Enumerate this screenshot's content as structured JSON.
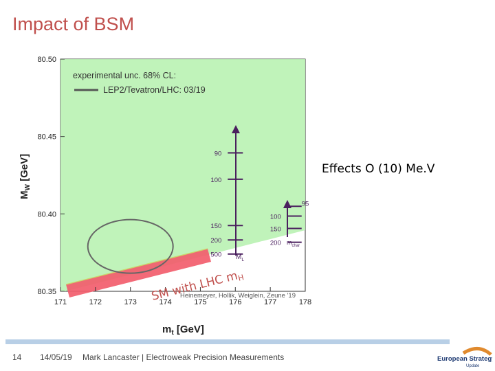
{
  "slide": {
    "title": "Impact of BSM",
    "side_note": "Effects O (10) Me.V"
  },
  "footer": {
    "page": "14",
    "date": "14/05/19",
    "author": "Mark Lancaster | Electroweak Precision Measurements",
    "logo_text_1": "European Strategy",
    "logo_text_2": "Update"
  },
  "chart_data": {
    "type": "scatter",
    "title": "",
    "xlabel": "m_t [GeV]",
    "ylabel": "M_W [GeV]",
    "xlim": [
      171,
      178
    ],
    "ylim": [
      80.35,
      80.5
    ],
    "x_ticks": [
      "171",
      "172",
      "173",
      "174",
      "175",
      "176",
      "177",
      "178"
    ],
    "y_ticks": [
      "80.35",
      "80.40",
      "80.45",
      "80.50"
    ],
    "legend": {
      "heading": "experimental unc. 68% CL:",
      "entry": "LEP2/Tevatron/LHC: 03/19"
    },
    "ellipse": {
      "center_mt": 173.0,
      "center_mw": 80.379,
      "label": "LEP2/Tevatron/LHC: 03/19"
    },
    "ml_scan": {
      "label": "M_L",
      "mt": 176.0,
      "points": [
        {
          "label": "90",
          "mw": 80.4394
        },
        {
          "label": "100",
          "mw": 80.4224
        },
        {
          "label": "150",
          "mw": 80.3925
        },
        {
          "label": "200",
          "mw": 80.3832
        },
        {
          "label": "500",
          "mw": 80.3741
        }
      ]
    },
    "mchar_scan": {
      "label": "m_char",
      "mt": 177.7,
      "points": [
        {
          "label": "95",
          "mw": 80.4049
        },
        {
          "label": "100",
          "mw": 80.3986
        },
        {
          "label": "150",
          "mw": 80.3906
        },
        {
          "label": "200",
          "mw": 80.3817
        }
      ]
    },
    "sm_band_label": "SM with LHC m_H",
    "credit": "Heinemeyer, Hollik, Weiglein, Zeune '19"
  }
}
